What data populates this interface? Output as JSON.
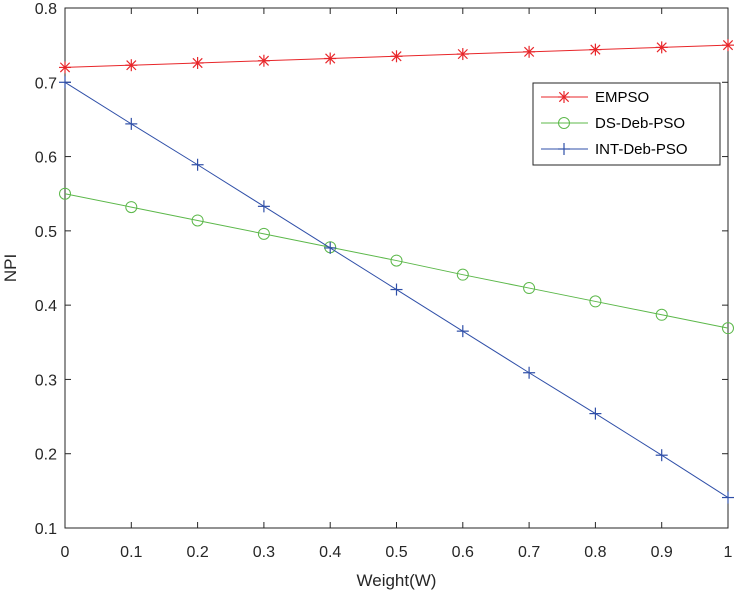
{
  "chart_data": {
    "type": "line",
    "title": "",
    "xlabel": "Weight(W)",
    "ylabel": "NPI",
    "xlim": [
      0,
      1
    ],
    "ylim": [
      0.1,
      0.8
    ],
    "xticks": [
      "0",
      "0.1",
      "0.2",
      "0.3",
      "0.4",
      "0.5",
      "0.6",
      "0.7",
      "0.8",
      "0.9",
      "1"
    ],
    "yticks": [
      "0.1",
      "0.2",
      "0.3",
      "0.4",
      "0.5",
      "0.6",
      "0.7",
      "0.8"
    ],
    "grid": false,
    "legend_position": "top-right",
    "x": [
      0,
      0.1,
      0.2,
      0.3,
      0.4,
      0.5,
      0.6,
      0.7,
      0.8,
      0.9,
      1
    ],
    "series": [
      {
        "name": "EMPSO",
        "color": "#e8262a",
        "marker": "asterisk",
        "values": [
          0.72,
          0.723,
          0.726,
          0.729,
          0.732,
          0.735,
          0.738,
          0.741,
          0.744,
          0.747,
          0.75
        ]
      },
      {
        "name": "DS-Deb-PSO",
        "color": "#5cb84a",
        "marker": "circle",
        "values": [
          0.55,
          0.532,
          0.514,
          0.496,
          0.478,
          0.46,
          0.441,
          0.423,
          0.405,
          0.387,
          0.369
        ]
      },
      {
        "name": "INT-Deb-PSO",
        "color": "#2f4fa8",
        "marker": "plus",
        "values": [
          0.7,
          0.644,
          0.589,
          0.533,
          0.477,
          0.421,
          0.365,
          0.309,
          0.254,
          0.198,
          0.141
        ]
      }
    ]
  }
}
